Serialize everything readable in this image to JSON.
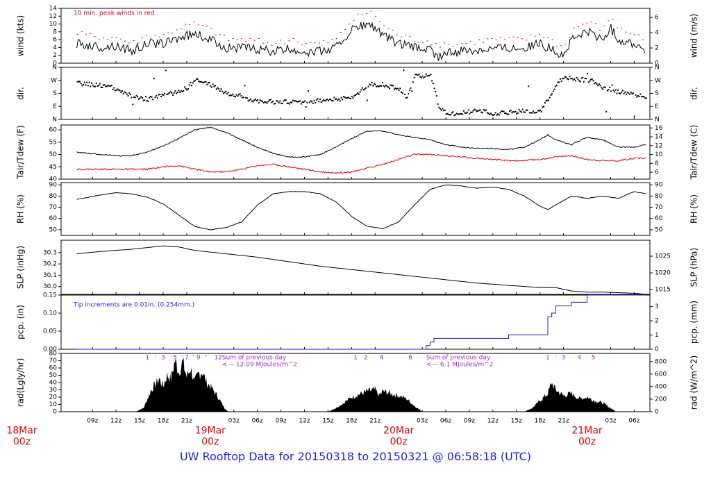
{
  "footer_title": "UW Rooftop Data for 20150318  to  20150321 @ 06:58:18  (UTC)",
  "colors": {
    "trace": "#000000",
    "wind_peak": "#e00000",
    "dewpoint": "#e00000",
    "precip": "#2020c0",
    "annotation_red": "#e00000",
    "annotation_blue": "#1f1fe0",
    "annotation_purple": "#9b2fd2",
    "date_red": "#e00000"
  },
  "x_axis": {
    "hour_ticks": [
      "09z",
      "12z",
      "15z",
      "18z",
      "21z",
      "03z",
      "06z",
      "09z",
      "12z",
      "15z",
      "18z",
      "21z",
      "03z",
      "06z",
      "09z",
      "12z",
      "15z",
      "18z",
      "21z",
      "03z",
      "06z"
    ],
    "hour_offsets_h": [
      9,
      12,
      15,
      18,
      21,
      27,
      30,
      33,
      36,
      39,
      42,
      45,
      51,
      54,
      57,
      60,
      63,
      66,
      69,
      75,
      78
    ],
    "date_labels": [
      {
        "date": "18Mar",
        "time": "00z",
        "offset_h": 0
      },
      {
        "date": "19Mar",
        "time": "00z",
        "offset_h": 24
      },
      {
        "date": "20Mar",
        "time": "00z",
        "offset_h": 48
      },
      {
        "date": "21Mar",
        "time": "00z",
        "offset_h": 72
      }
    ]
  },
  "chart_data": [
    {
      "type": "line",
      "panel": "wind",
      "ylabel_left": "wind (kts)",
      "ylabel_right": "wind (m/s)",
      "ylim": [
        0,
        14
      ],
      "yticks_left": [
        "0",
        "2",
        "4",
        "6",
        "8",
        "10",
        "12",
        "14"
      ],
      "yticks_right": [
        "0",
        "2",
        "4",
        "6"
      ],
      "annotation": "10 min. peak winds in red",
      "series": [
        {
          "name": "",
          "x_h": [
            7,
            10,
            12,
            14,
            16,
            18,
            20,
            22,
            24,
            26,
            28,
            30,
            32,
            34,
            36,
            38,
            40,
            42,
            44,
            45,
            46,
            48,
            50,
            52,
            53,
            54,
            56,
            58,
            60,
            62,
            64,
            66,
            68,
            69,
            70,
            71,
            72,
            74,
            75,
            76,
            78,
            79.5
          ],
          "values": [
            5,
            4,
            4.5,
            3,
            5,
            5,
            6.5,
            7.5,
            6,
            4,
            4,
            3.5,
            3,
            3.5,
            3,
            3,
            4,
            8.5,
            10,
            9,
            7,
            5,
            4,
            3.5,
            1.5,
            2.5,
            3,
            3.5,
            4,
            4,
            4,
            5,
            3,
            2,
            6,
            7,
            8,
            6,
            9,
            6,
            5,
            3.5
          ]
        },
        {
          "name": "",
          "x_h": [
            7,
            10,
            12,
            14,
            16,
            18,
            20,
            22,
            24,
            26,
            28,
            30,
            32,
            34,
            36,
            38,
            40,
            42,
            44,
            45,
            46,
            48,
            50,
            52,
            53,
            54,
            56,
            58,
            60,
            62,
            64,
            66,
            68,
            69,
            70,
            71,
            72,
            74,
            75,
            76,
            78,
            79.5
          ],
          "values": [
            7.5,
            6.5,
            6.5,
            5,
            7,
            7,
            9,
            10,
            8.5,
            6,
            6,
            5.5,
            5,
            5.5,
            5,
            5,
            6,
            11,
            13,
            12,
            9.5,
            7,
            6,
            5.5,
            3.5,
            4.5,
            5,
            5.5,
            6,
            6,
            6,
            7.5,
            5,
            4,
            8.5,
            9.5,
            10.5,
            8.5,
            12,
            8.5,
            7.5,
            5.5
          ]
        }
      ]
    },
    {
      "type": "scatter",
      "panel": "dir",
      "ylabel_left": "dir.",
      "ylabel_right": "dir.",
      "yticks": [
        "N",
        "E",
        "S",
        "W",
        "N"
      ],
      "x_h": [
        7,
        9,
        11,
        12,
        14,
        16,
        18,
        20,
        21,
        22,
        24,
        26,
        28,
        30,
        32,
        34,
        36,
        38,
        40,
        42,
        44,
        46,
        48,
        49,
        50,
        51,
        52,
        53,
        54,
        56,
        58,
        60,
        62,
        64,
        66,
        68,
        69,
        70,
        72,
        73,
        74,
        76,
        78,
        79.5
      ],
      "values": [
        250,
        240,
        230,
        200,
        160,
        140,
        170,
        190,
        220,
        270,
        240,
        180,
        150,
        130,
        120,
        120,
        120,
        130,
        140,
        150,
        240,
        240,
        210,
        140,
        300,
        300,
        300,
        100,
        40,
        45,
        60,
        40,
        45,
        60,
        50,
        230,
        300,
        280,
        270,
        260,
        220,
        190,
        170,
        150
      ]
    },
    {
      "type": "line",
      "panel": "temperature",
      "ylabel_left": "Tair/Tdew (F)",
      "ylabel_right": "Tair/Tdew (C)",
      "ylim": [
        40,
        62
      ],
      "yticks_left": [
        "40",
        "45",
        "50",
        "55",
        "60"
      ],
      "yticks_right": [
        "6",
        "8",
        "10",
        "12",
        "14",
        "16"
      ],
      "series": [
        {
          "name": "",
          "x_h": [
            7,
            10,
            12,
            14,
            16,
            18,
            20,
            22,
            24,
            26,
            28,
            30,
            32,
            34,
            36,
            38,
            40,
            42,
            44,
            46,
            48,
            50,
            52,
            54,
            56,
            58,
            60,
            62,
            64,
            66,
            67,
            68,
            70,
            72,
            74,
            76,
            78,
            79.5
          ],
          "values": [
            51,
            50,
            49.5,
            49.5,
            51,
            53.5,
            56.5,
            60,
            61,
            59,
            56,
            53,
            50.5,
            49,
            49,
            50,
            53,
            56.5,
            59.5,
            59.5,
            58,
            57,
            56,
            54,
            53,
            52.5,
            52.5,
            52,
            53,
            56,
            58,
            56,
            54,
            57,
            56,
            53,
            53,
            54
          ]
        },
        {
          "name": "",
          "x_h": [
            7,
            10,
            12,
            14,
            16,
            18,
            20,
            22,
            24,
            26,
            28,
            30,
            32,
            34,
            36,
            38,
            40,
            42,
            44,
            46,
            48,
            50,
            52,
            54,
            56,
            58,
            60,
            62,
            64,
            66,
            68,
            70,
            72,
            74,
            76,
            78,
            79.5
          ],
          "values": [
            44,
            44,
            44,
            44,
            44,
            45,
            45.5,
            44,
            43,
            43,
            44,
            45.5,
            46,
            45,
            44,
            43,
            42.5,
            43,
            44.5,
            46,
            48,
            50,
            50,
            49.5,
            49,
            48.5,
            48,
            47.5,
            47.5,
            48,
            49,
            49.5,
            48,
            47.5,
            47.5,
            48.5,
            48.5
          ]
        }
      ]
    },
    {
      "type": "line",
      "panel": "humidity",
      "ylabel_left": "RH (%)",
      "ylabel_right": "RH (%)",
      "ylim": [
        45,
        92
      ],
      "yticks": [
        "50",
        "60",
        "70",
        "80",
        "90"
      ],
      "series": [
        {
          "name": "",
          "x_h": [
            7,
            10,
            12,
            14,
            16,
            18,
            20,
            22,
            24,
            26,
            28,
            30,
            32,
            34,
            36,
            38,
            40,
            42,
            44,
            46,
            48,
            50,
            52,
            54,
            56,
            58,
            60,
            62,
            64,
            66,
            67,
            68,
            70,
            72,
            74,
            76,
            78,
            79.5
          ],
          "values": [
            77,
            81,
            83,
            82,
            79,
            73,
            63,
            53,
            50,
            52,
            57,
            72,
            82,
            84,
            84,
            82,
            75,
            62,
            53,
            51,
            57,
            72,
            86,
            90,
            89,
            87,
            88,
            86,
            80,
            71,
            68,
            72,
            80,
            78,
            80,
            78,
            84,
            82
          ]
        }
      ]
    },
    {
      "type": "line",
      "panel": "pressure",
      "ylabel_left": "SLP (inHg)",
      "ylabel_right": "SLP (hPa)",
      "ylim": [
        29.93,
        30.41
      ],
      "yticks_left": [
        "30.0",
        "30.1",
        "30.2",
        "30.3"
      ],
      "yticks_right": [
        "1015",
        "1020",
        "1025"
      ],
      "series": [
        {
          "name": "",
          "x_h": [
            7,
            10,
            14,
            18,
            20,
            22,
            26,
            30,
            34,
            38,
            42,
            46,
            50,
            54,
            58,
            62,
            66,
            68,
            70,
            72,
            74,
            78,
            79.5
          ],
          "values": [
            30.29,
            30.31,
            30.33,
            30.36,
            30.35,
            30.32,
            30.29,
            30.26,
            30.22,
            30.18,
            30.15,
            30.12,
            30.09,
            30.06,
            30.03,
            30.01,
            29.99,
            29.99,
            29.96,
            29.95,
            29.95,
            29.94,
            29.93
          ]
        }
      ]
    },
    {
      "type": "line",
      "panel": "precipitation",
      "ylabel_left": "pcp. (in)",
      "ylabel_right": "pcp. (mm)",
      "ylim": [
        0,
        0.15
      ],
      "yticks_left": [
        "0.00",
        "0.05",
        "0.10",
        "0.15"
      ],
      "yticks_right": [
        "0",
        "1",
        "2",
        "3"
      ],
      "annotation": "Tip increments are 0.01in. (0.254mm.)",
      "series": [
        {
          "name": "",
          "x_h": [
            7,
            51,
            51.5,
            52,
            52.5,
            53,
            62,
            66,
            67,
            67.5,
            68,
            70,
            72,
            79.5
          ],
          "values": [
            0,
            0,
            0.01,
            0.02,
            0.03,
            0.03,
            0.04,
            0.04,
            0.09,
            0.1,
            0.12,
            0.13,
            0.15,
            0.15
          ]
        }
      ]
    },
    {
      "type": "area",
      "panel": "radiation",
      "ylabel_left": "rad(Lgly/hr)",
      "ylabel_right": "rad (W/m^2)",
      "ylim": [
        0,
        80
      ],
      "yticks_left": [
        "0",
        "10",
        "20",
        "30",
        "40",
        "50",
        "60",
        "70",
        "80"
      ],
      "yticks_right": [
        "0",
        "200",
        "400",
        "600",
        "800"
      ],
      "annotations": [
        {
          "text": "Sum of previous day",
          "x_h": 25.5
        },
        {
          "text": "<--- 12.09 MJoules/m^2",
          "x_h": 25.5
        },
        {
          "text": "Sum of previous day",
          "x_h": 51.5
        },
        {
          "text": "<--- 6.1 MJoules/m^2",
          "x_h": 51.5
        }
      ],
      "hour_markers": [
        {
          "text": "1",
          "x_h": 16
        },
        {
          "text": "'",
          "x_h": 17
        },
        {
          "text": "3",
          "x_h": 18
        },
        {
          "text": "'",
          "x_h": 19
        },
        {
          "text": "5",
          "x_h": 19.5
        },
        {
          "text": "'",
          "x_h": 20.5
        },
        {
          "text": "7",
          "x_h": 21
        },
        {
          "text": "'",
          "x_h": 21.8
        },
        {
          "text": "9",
          "x_h": 22.5
        },
        {
          "text": "'",
          "x_h": 23.5
        },
        {
          "text": "12",
          "x_h": 25
        },
        {
          "text": "1",
          "x_h": 42.5
        },
        {
          "text": "2",
          "x_h": 43.8
        },
        {
          "text": "4",
          "x_h": 45.8
        },
        {
          "text": "6",
          "x_h": 49.5
        },
        {
          "text": "1",
          "x_h": 67
        },
        {
          "text": "'",
          "x_h": 68
        },
        {
          "text": "3",
          "x_h": 69
        },
        {
          "text": "4",
          "x_h": 71
        },
        {
          "text": "5",
          "x_h": 72.8
        }
      ],
      "series": [
        {
          "name": "",
          "x_h": [
            7,
            14.5,
            15.5,
            16.5,
            17.5,
            18,
            18.5,
            19,
            19.5,
            20,
            20.5,
            21,
            21.5,
            22,
            22.5,
            23,
            23.5,
            24,
            25,
            25.8,
            26.3,
            39,
            40,
            41,
            42,
            43,
            44,
            45,
            45.5,
            46,
            47,
            48,
            49,
            50,
            51,
            64,
            65,
            66,
            67,
            67.5,
            68,
            69,
            70,
            71,
            72,
            73,
            74,
            75,
            75.7,
            79.5
          ],
          "values": [
            0,
            0,
            5,
            30,
            45,
            35,
            50,
            45,
            70,
            55,
            68,
            48,
            60,
            40,
            52,
            55,
            40,
            35,
            20,
            5,
            0,
            0,
            5,
            12,
            20,
            24,
            28,
            30,
            22,
            28,
            25,
            22,
            18,
            8,
            0,
            0,
            5,
            15,
            25,
            40,
            30,
            22,
            25,
            18,
            20,
            15,
            12,
            5,
            0,
            0
          ]
        }
      ]
    }
  ]
}
